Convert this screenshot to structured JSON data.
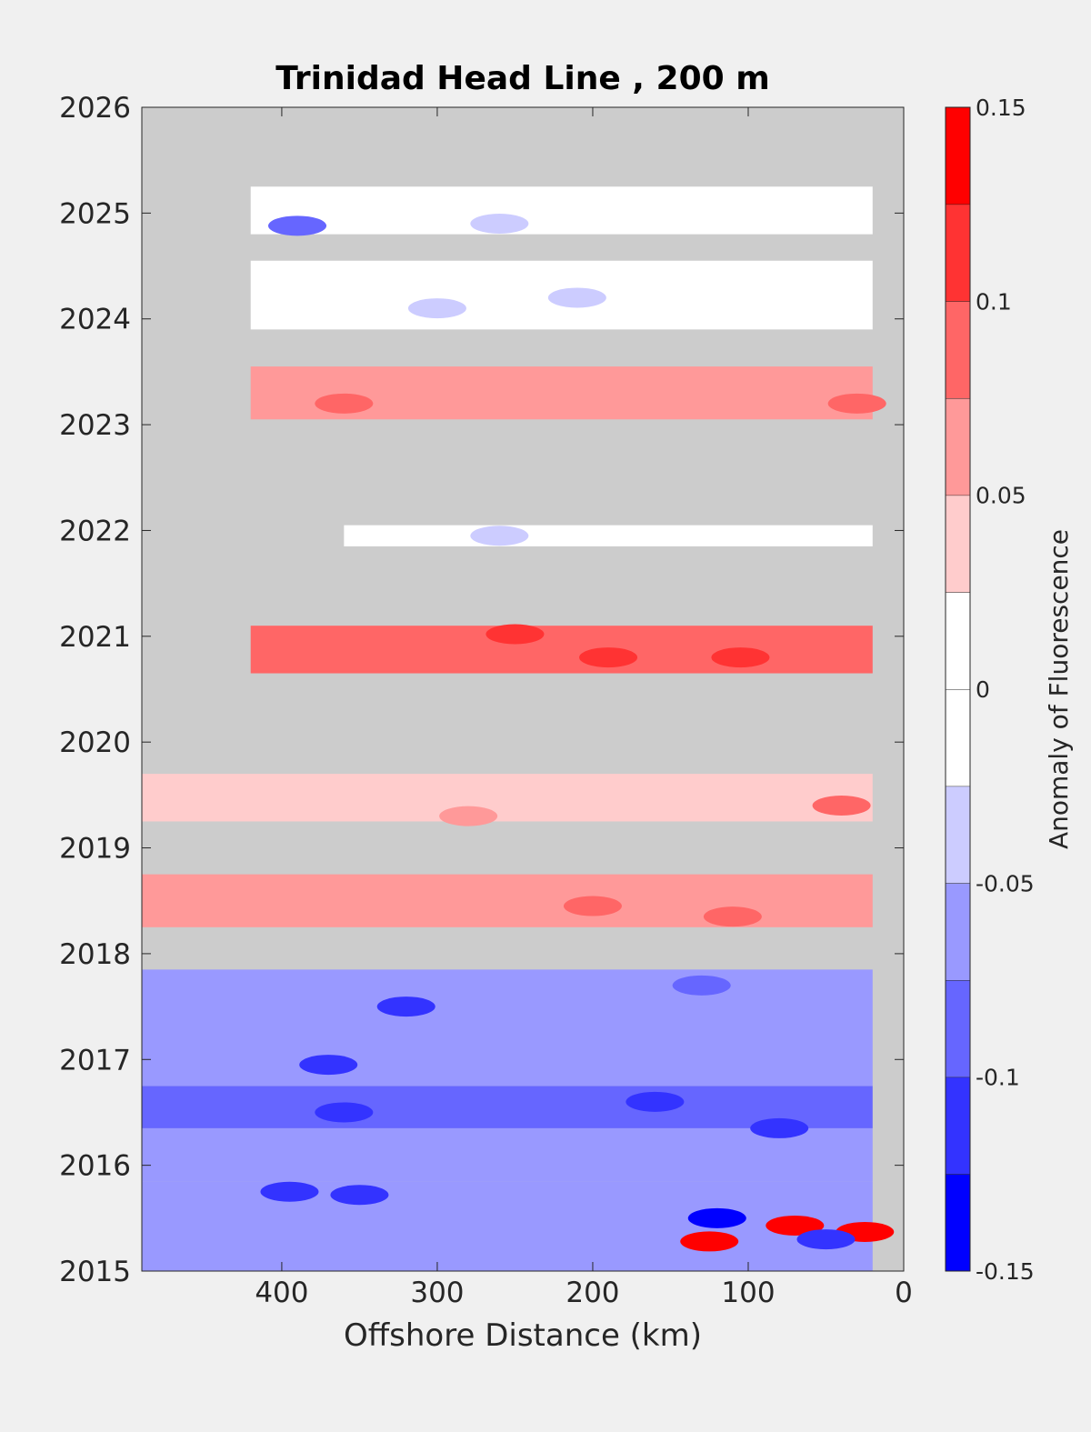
{
  "chart_data": {
    "type": "heatmap",
    "title": "Trinidad Head Line , 200 m",
    "xlabel": "Offshore Distance (km)",
    "colorbar_label": "Anomaly of Fluorescence",
    "x_reversed": true,
    "xlim": [
      490,
      0
    ],
    "ylim": [
      2015,
      2026
    ],
    "xticks": [
      400,
      300,
      200,
      100,
      0
    ],
    "yticks": [
      2015,
      2016,
      2017,
      2018,
      2019,
      2020,
      2021,
      2022,
      2023,
      2024,
      2025,
      2026
    ],
    "colorbar_range": [
      -0.15,
      0.15
    ],
    "colorbar_ticks": [
      0.15,
      0.1,
      0.05,
      0,
      -0.05,
      -0.1,
      -0.15
    ],
    "color_levels": [
      {
        "min": -0.15,
        "max": -0.125,
        "color": "#0000ff"
      },
      {
        "min": -0.125,
        "max": -0.1,
        "color": "#3333ff"
      },
      {
        "min": -0.1,
        "max": -0.075,
        "color": "#6666ff"
      },
      {
        "min": -0.075,
        "max": -0.05,
        "color": "#9999ff"
      },
      {
        "min": -0.05,
        "max": -0.025,
        "color": "#ccccff"
      },
      {
        "min": -0.025,
        "max": 0,
        "color": "#ffffff"
      },
      {
        "min": 0,
        "max": 0.025,
        "color": "#ffffff"
      },
      {
        "min": 0.025,
        "max": 0.05,
        "color": "#ffcccc"
      },
      {
        "min": 0.05,
        "max": 0.075,
        "color": "#ff9999"
      },
      {
        "min": 0.075,
        "max": 0.1,
        "color": "#ff6666"
      },
      {
        "min": 0.1,
        "max": 0.125,
        "color": "#ff3333"
      },
      {
        "min": 0.125,
        "max": 0.15,
        "color": "#ff0000"
      }
    ],
    "no_data_color": "#cccccc",
    "bands": [
      {
        "y0": 2015.0,
        "y1": 2015.85,
        "x_from": 490,
        "x_to": 20,
        "anomaly": -0.06,
        "spots": [
          {
            "x": 120,
            "y": 2015.5,
            "v": -0.14
          },
          {
            "x": 125,
            "y": 2015.28,
            "v": 0.13
          },
          {
            "x": 70,
            "y": 2015.43,
            "v": 0.14
          },
          {
            "x": 25,
            "y": 2015.37,
            "v": 0.13
          },
          {
            "x": 50,
            "y": 2015.3,
            "v": -0.1
          }
        ]
      },
      {
        "y0": 2015.85,
        "y1": 2016.35,
        "x_from": 490,
        "x_to": 20,
        "anomaly": -0.06,
        "spots": [
          {
            "x": 395,
            "y": 2015.75,
            "v": -0.12
          },
          {
            "x": 350,
            "y": 2015.72,
            "v": -0.12
          }
        ]
      },
      {
        "y0": 2016.35,
        "y1": 2016.75,
        "x_from": 490,
        "x_to": 20,
        "anomaly": -0.08,
        "spots": [
          {
            "x": 360,
            "y": 2016.5,
            "v": -0.12
          },
          {
            "x": 160,
            "y": 2016.6,
            "v": -0.1
          },
          {
            "x": 80,
            "y": 2016.35,
            "v": -0.1
          }
        ]
      },
      {
        "y0": 2016.75,
        "y1": 2017.2,
        "x_from": 490,
        "x_to": 20,
        "anomaly": -0.06,
        "spots": [
          {
            "x": 370,
            "y": 2016.95,
            "v": -0.1
          }
        ]
      },
      {
        "y0": 2017.2,
        "y1": 2017.85,
        "x_from": 490,
        "x_to": 20,
        "anomaly": -0.07,
        "spots": [
          {
            "x": 320,
            "y": 2017.5,
            "v": -0.11
          },
          {
            "x": 130,
            "y": 2017.7,
            "v": -0.09
          }
        ]
      },
      {
        "y0": 2018.25,
        "y1": 2018.75,
        "x_from": 490,
        "x_to": 20,
        "anomaly": 0.06,
        "spots": [
          {
            "x": 110,
            "y": 2018.35,
            "v": 0.1
          },
          {
            "x": 200,
            "y": 2018.45,
            "v": 0.09
          }
        ]
      },
      {
        "y0": 2019.25,
        "y1": 2019.7,
        "x_from": 490,
        "x_to": 20,
        "anomaly": 0.04,
        "spots": [
          {
            "x": 40,
            "y": 2019.4,
            "v": 0.09
          },
          {
            "x": 280,
            "y": 2019.3,
            "v": 0.07
          }
        ]
      },
      {
        "y0": 2020.65,
        "y1": 2021.1,
        "x_from": 420,
        "x_to": 20,
        "anomaly": 0.09,
        "spots": [
          {
            "x": 250,
            "y": 2021.02,
            "v": 0.11
          },
          {
            "x": 105,
            "y": 2020.8,
            "v": 0.11
          },
          {
            "x": 190,
            "y": 2020.8,
            "v": 0.11
          }
        ]
      },
      {
        "y0": 2021.85,
        "y1": 2022.05,
        "x_from": 360,
        "x_to": 20,
        "anomaly": 0.0,
        "spots": [
          {
            "x": 260,
            "y": 2021.95,
            "v": -0.04
          }
        ]
      },
      {
        "y0": 2023.05,
        "y1": 2023.55,
        "x_from": 420,
        "x_to": 20,
        "anomaly": 0.07,
        "spots": [
          {
            "x": 360,
            "y": 2023.2,
            "v": 0.1
          },
          {
            "x": 30,
            "y": 2023.2,
            "v": 0.1
          }
        ]
      },
      {
        "y0": 2023.9,
        "y1": 2024.55,
        "x_from": 420,
        "x_to": 20,
        "anomaly": -0.02,
        "spots": [
          {
            "x": 300,
            "y": 2024.1,
            "v": -0.04
          },
          {
            "x": 210,
            "y": 2024.2,
            "v": -0.04
          }
        ]
      },
      {
        "y0": 2024.8,
        "y1": 2025.25,
        "x_from": 420,
        "x_to": 20,
        "anomaly": -0.02,
        "spots": [
          {
            "x": 390,
            "y": 2024.88,
            "v": -0.08
          },
          {
            "x": 260,
            "y": 2024.9,
            "v": -0.04
          }
        ]
      }
    ]
  }
}
